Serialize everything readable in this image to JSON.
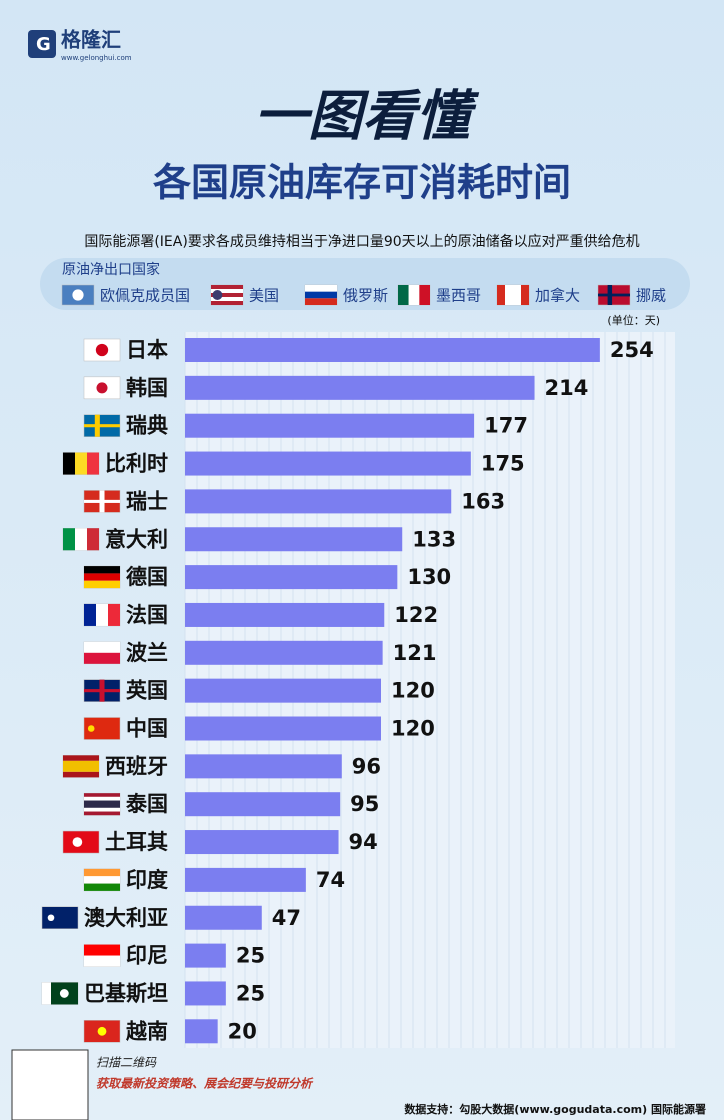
{
  "logo": {
    "name": "格隆汇",
    "url": "www.gelonghui.com"
  },
  "chart_data": {
    "type": "hbar",
    "title": "一图看懂",
    "subtitle": "各国原油库存可消耗时间",
    "description": "国际能源署(IEA)要求各成员维持相当于净进口量90天以上的原油储备以应对严重供给危机",
    "legend_title": "原油净出口国家",
    "legend_items": [
      "欧佩克成员国",
      "美国",
      "俄罗斯",
      "墨西哥",
      "加拿大",
      "挪威"
    ],
    "unit": "(单位：天)",
    "categories": [
      "日本",
      "韩国",
      "瑞典",
      "比利时",
      "瑞士",
      "意大利",
      "德国",
      "法国",
      "波兰",
      "英国",
      "中国",
      "西班牙",
      "泰国",
      "土耳其",
      "印度",
      "澳大利亚",
      "印尼",
      "巴基斯坦",
      "越南"
    ],
    "values": [
      254,
      214,
      177,
      175,
      163,
      133,
      130,
      122,
      121,
      120,
      120,
      96,
      95,
      94,
      74,
      47,
      25,
      25,
      20
    ],
    "color": "#7b7ef0",
    "xlim": [
      0,
      300
    ]
  },
  "footer": {
    "scan": "扫描二维码",
    "promo": "获取最新投资策略、展会纪要与投研分析",
    "source": "数据支持：勾股大数据(www.gogudata.com) 国际能源署"
  }
}
